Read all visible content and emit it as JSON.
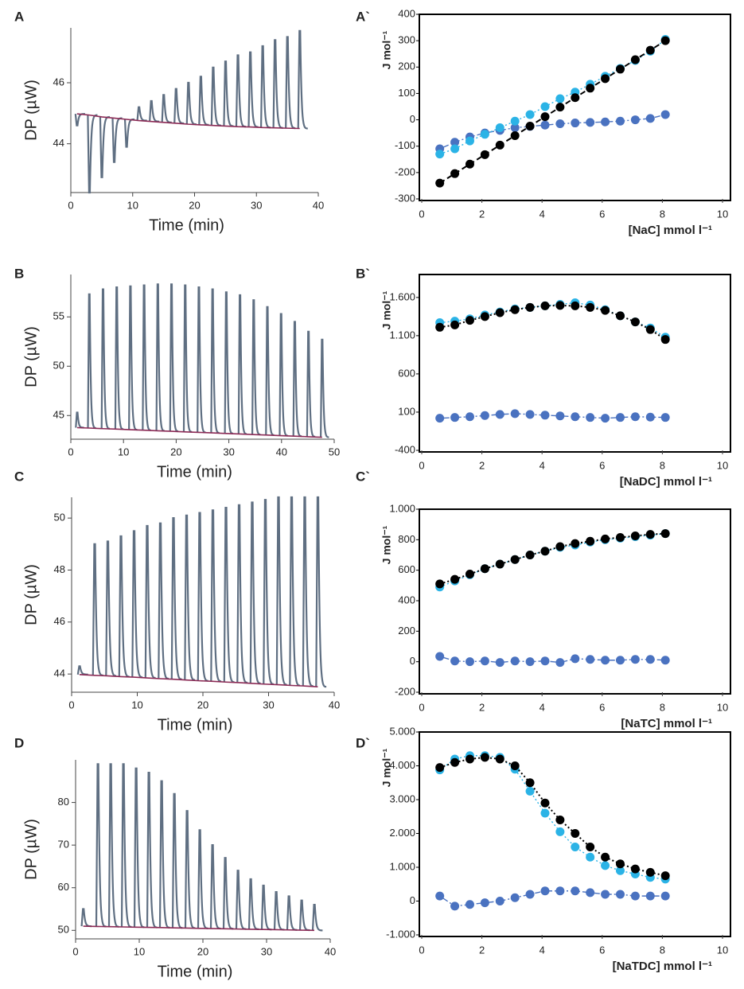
{
  "chart_data": [
    {
      "type": "thermogram",
      "title": "A",
      "ylabel": "DP (µW)",
      "xlabel": "Time (min)",
      "xlim": [
        0,
        40
      ],
      "xticks": [
        0,
        10,
        20,
        30,
        40
      ],
      "ylim": [
        42.4,
        47.8
      ],
      "yticks": [
        44,
        46
      ],
      "x": [
        1,
        3,
        5,
        7,
        9,
        11,
        13,
        15,
        17,
        19,
        21,
        23,
        25,
        27,
        29,
        31,
        33,
        35,
        37
      ],
      "series": [
        {
          "color": "#5f6f82",
          "values": [
            44.6,
            42.4,
            42.9,
            43.4,
            43.9,
            45.2,
            45.4,
            45.6,
            45.8,
            46.0,
            46.2,
            46.5,
            46.7,
            46.9,
            47.0,
            47.2,
            47.4,
            47.5,
            47.7
          ]
        },
        {
          "color": "#8b2a55",
          "values": [
            44.98,
            44.94,
            44.88,
            44.84,
            44.8,
            44.76,
            44.73,
            44.7,
            44.67,
            44.64,
            44.62,
            44.6,
            44.58,
            44.56,
            44.55,
            44.53,
            44.52,
            44.51,
            44.5
          ]
        }
      ]
    },
    {
      "type": "scatter",
      "title": "A`",
      "ylabel": "J mol⁻¹",
      "xlabel": "[NaC] mmol l⁻¹",
      "xlim": [
        0,
        10
      ],
      "xticks": [
        0,
        2,
        4,
        6,
        8,
        10
      ],
      "ylim": [
        -300,
        400
      ],
      "yticks": [
        -300,
        -200,
        -100,
        0,
        100,
        200,
        300,
        400
      ],
      "x": [
        0.6,
        1.1,
        1.6,
        2.1,
        2.6,
        3.1,
        3.6,
        4.1,
        4.6,
        5.1,
        5.6,
        6.1,
        6.6,
        7.1,
        7.6,
        8.1
      ],
      "series": [
        {
          "color": "#4a72c0",
          "dash": "2 3 7 3",
          "values": [
            -110,
            -85,
            -65,
            -50,
            -40,
            -30,
            -25,
            -20,
            -15,
            -12,
            -10,
            -8,
            -5,
            0,
            5,
            20
          ]
        },
        {
          "color": "#2bb3e6",
          "dash": "2 3",
          "values": [
            -130,
            -110,
            -80,
            -55,
            -30,
            -5,
            20,
            50,
            80,
            105,
            135,
            165,
            195,
            225,
            260,
            305
          ]
        },
        {
          "color": "#000000",
          "dash": "7 4",
          "values": [
            -240,
            -204,
            -168,
            -132,
            -96,
            -60,
            -24,
            12,
            48,
            84,
            120,
            156,
            192,
            228,
            264,
            300
          ]
        }
      ]
    },
    {
      "type": "thermogram",
      "title": "B",
      "ylabel": "DP (µW)",
      "xlabel": "Time (min)",
      "xlim": [
        0,
        50
      ],
      "xticks": [
        0,
        10,
        20,
        30,
        40,
        50
      ],
      "ylim": [
        42.6,
        59.3
      ],
      "yticks": [
        45,
        50,
        55
      ],
      "x": [
        1.2,
        3.5,
        6.1,
        8.7,
        11.3,
        13.9,
        16.5,
        19.1,
        21.7,
        24.3,
        26.9,
        29.5,
        32.1,
        34.7,
        37.3,
        39.9,
        42.5,
        45.1,
        47.7
      ],
      "series": [
        {
          "color": "#5f6f82",
          "values": [
            45.3,
            57.3,
            57.8,
            58.0,
            58.1,
            58.2,
            58.3,
            58.3,
            58.2,
            58.0,
            57.8,
            57.5,
            57.2,
            56.7,
            56.0,
            55.3,
            54.5,
            53.5,
            52.7
          ]
        },
        {
          "color": "#8b2a55",
          "values": [
            43.77,
            43.73,
            43.67,
            43.62,
            43.56,
            43.51,
            43.45,
            43.4,
            43.34,
            43.29,
            43.24,
            43.18,
            43.13,
            43.07,
            43.02,
            42.96,
            42.91,
            42.85,
            42.8
          ]
        }
      ]
    },
    {
      "type": "scatter",
      "title": "B`",
      "ylabel": "J mol⁻¹",
      "xlabel": "[NaDC] mmol l⁻¹",
      "xlim": [
        0,
        10
      ],
      "xticks": [
        0,
        2,
        4,
        6,
        8,
        10
      ],
      "ylim": [
        -400,
        1900
      ],
      "yticks": [
        -400,
        100,
        600,
        {
          "value": 1100,
          "label": "1.100"
        },
        {
          "value": 1600,
          "label": "1.600"
        }
      ],
      "x": [
        0.6,
        1.1,
        1.6,
        2.1,
        2.6,
        3.1,
        3.6,
        4.1,
        4.6,
        5.1,
        5.6,
        6.1,
        6.6,
        7.1,
        7.6,
        8.1
      ],
      "series": [
        {
          "color": "#4a72c0",
          "dash": "2 3 7 3",
          "values": [
            20,
            30,
            40,
            55,
            70,
            80,
            70,
            60,
            50,
            40,
            30,
            20,
            30,
            40,
            35,
            30
          ]
        },
        {
          "color": "#2bb3e6",
          "dash": "2 3",
          "values": [
            1270,
            1290,
            1320,
            1370,
            1410,
            1450,
            1470,
            1490,
            1510,
            1530,
            1500,
            1440,
            1360,
            1280,
            1200,
            1080
          ]
        },
        {
          "color": "#000000",
          "dash": "2 3",
          "values": [
            1210,
            1240,
            1300,
            1350,
            1400,
            1440,
            1470,
            1490,
            1495,
            1490,
            1470,
            1430,
            1360,
            1280,
            1180,
            1050
          ]
        }
      ]
    },
    {
      "type": "thermogram",
      "title": "C",
      "ylabel": "DP (µW)",
      "xlabel": "Time (min)",
      "xlim": [
        0,
        40
      ],
      "xticks": [
        0,
        10,
        20,
        30,
        40
      ],
      "ylim": [
        43.3,
        50.8
      ],
      "yticks": [
        44,
        46,
        48,
        50
      ],
      "x": [
        1.2,
        3.5,
        5.5,
        7.5,
        9.5,
        11.5,
        13.5,
        15.5,
        17.5,
        19.5,
        21.5,
        23.5,
        25.5,
        27.5,
        29.5,
        31.5,
        33.5,
        35.5,
        37.5
      ],
      "series": [
        {
          "color": "#5f6f82",
          "values": [
            44.3,
            49.0,
            49.1,
            49.3,
            49.5,
            49.7,
            49.8,
            50.0,
            50.1,
            50.2,
            50.3,
            50.4,
            50.5,
            50.6,
            50.7,
            50.8,
            50.8,
            50.8,
            50.8
          ]
        },
        {
          "color": "#8b2a55",
          "values": [
            43.98,
            43.95,
            43.93,
            43.9,
            43.88,
            43.85,
            43.82,
            43.8,
            43.77,
            43.74,
            43.72,
            43.69,
            43.67,
            43.64,
            43.61,
            43.59,
            43.56,
            43.54,
            43.51
          ]
        }
      ]
    },
    {
      "type": "scatter",
      "title": "C`",
      "ylabel": "J mol⁻¹",
      "xlabel": "[NaTC] mmol l⁻¹",
      "xlim": [
        0,
        10
      ],
      "xticks": [
        0,
        2,
        4,
        6,
        8,
        10
      ],
      "ylim": [
        -200,
        1000
      ],
      "yticks": [
        -200,
        0,
        200,
        400,
        600,
        800,
        {
          "value": 1000,
          "label": "1.000"
        }
      ],
      "x": [
        0.6,
        1.1,
        1.6,
        2.1,
        2.6,
        3.1,
        3.6,
        4.1,
        4.6,
        5.1,
        5.6,
        6.1,
        6.6,
        7.1,
        7.6,
        8.1
      ],
      "series": [
        {
          "color": "#4a72c0",
          "dash": "2 3 7 3",
          "values": [
            35,
            5,
            0,
            5,
            -5,
            5,
            0,
            5,
            -5,
            20,
            15,
            10,
            10,
            15,
            15,
            10
          ]
        },
        {
          "color": "#2bb3e6",
          "dash": "2 3",
          "values": [
            490,
            530,
            570,
            610,
            640,
            670,
            700,
            725,
            750,
            765,
            785,
            800,
            810,
            820,
            830,
            840
          ]
        },
        {
          "color": "#000000",
          "dash": "2 3",
          "values": [
            510,
            540,
            575,
            610,
            640,
            670,
            700,
            725,
            755,
            775,
            790,
            805,
            815,
            825,
            835,
            840
          ]
        }
      ]
    },
    {
      "type": "thermogram",
      "title": "D",
      "ylabel": "DP (µW)",
      "xlabel": "Time (min)",
      "xlim": [
        0,
        40
      ],
      "xticks": [
        0,
        10,
        20,
        30,
        40
      ],
      "ylim": [
        48,
        90
      ],
      "yticks": [
        50,
        60,
        70,
        80
      ],
      "x": [
        1.2,
        3.5,
        5.5,
        7.5,
        9.5,
        11.5,
        13.5,
        15.5,
        17.5,
        19.5,
        21.5,
        23.5,
        25.5,
        27.5,
        29.5,
        31.5,
        33.5,
        35.5,
        37.5
      ],
      "series": [
        {
          "color": "#5f6f82",
          "values": [
            55,
            89,
            89,
            89,
            88,
            87,
            85,
            82,
            78,
            73.5,
            70,
            67,
            64,
            62,
            60.5,
            59,
            58,
            57,
            56
          ]
        },
        {
          "color": "#8b2a55",
          "values": [
            50.97,
            50.91,
            50.85,
            50.8,
            50.74,
            50.69,
            50.64,
            50.58,
            50.53,
            50.47,
            50.42,
            50.37,
            50.31,
            50.26,
            50.2,
            50.15,
            50.1,
            50.04,
            49.99
          ]
        }
      ]
    },
    {
      "type": "scatter",
      "title": "D`",
      "ylabel": "J mol⁻¹",
      "xlabel": "[NaTDC] mmol l⁻¹",
      "xlim": [
        0,
        10
      ],
      "xticks": [
        0,
        2,
        4,
        6,
        8,
        10
      ],
      "ylim": [
        -1000,
        5000
      ],
      "yticks": [
        {
          "value": -1000,
          "label": "-1.000"
        },
        0,
        {
          "value": 1000,
          "label": "1.000"
        },
        {
          "value": 2000,
          "label": "2.000"
        },
        {
          "value": 3000,
          "label": "3.000"
        },
        {
          "value": 4000,
          "label": "4.000"
        },
        {
          "value": 5000,
          "label": "5.000"
        }
      ],
      "x": [
        0.6,
        1.1,
        1.6,
        2.1,
        2.6,
        3.1,
        3.6,
        4.1,
        4.6,
        5.1,
        5.6,
        6.1,
        6.6,
        7.1,
        7.6,
        8.1
      ],
      "series": [
        {
          "color": "#4a72c0",
          "dash": "2 3 7 3",
          "values": [
            150,
            -150,
            -100,
            -50,
            0,
            100,
            200,
            300,
            300,
            300,
            250,
            200,
            200,
            150,
            150,
            150
          ]
        },
        {
          "color": "#2bb3e6",
          "dash": "2 3",
          "values": [
            3880,
            4200,
            4300,
            4300,
            4250,
            3900,
            3250,
            2600,
            2050,
            1600,
            1300,
            1050,
            900,
            800,
            700,
            650
          ]
        },
        {
          "color": "#000000",
          "dash": "2 3",
          "values": [
            3950,
            4100,
            4200,
            4250,
            4200,
            4000,
            3500,
            2900,
            2400,
            2000,
            1600,
            1300,
            1100,
            950,
            850,
            750
          ]
        }
      ]
    }
  ]
}
